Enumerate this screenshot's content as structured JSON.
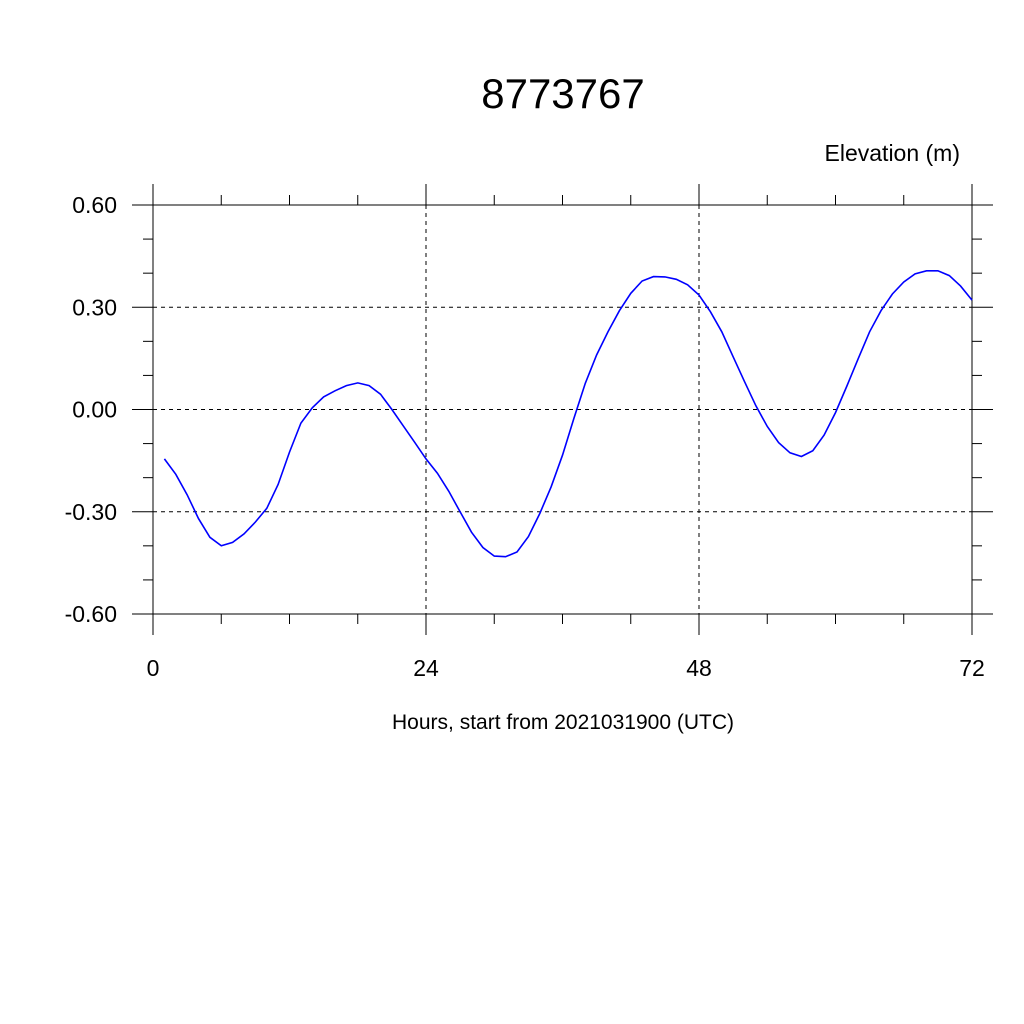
{
  "chart_data": {
    "type": "line",
    "title": "8773767",
    "ylabel": "Elevation (m)",
    "xlabel": "Hours, start from 2021031900 (UTC)",
    "xlim": [
      0,
      72
    ],
    "ylim": [
      -0.6,
      0.6
    ],
    "xticks": [
      0,
      24,
      48,
      72
    ],
    "xtick_labels": [
      "0",
      "24",
      "48",
      "72"
    ],
    "x_minor_step": 6,
    "yticks": [
      0.6,
      0.3,
      0.0,
      -0.3,
      -0.6
    ],
    "ytick_labels": [
      "0.60",
      "0.30",
      "0.00",
      "-0.30",
      "-0.60"
    ],
    "y_minor_step": 0.1,
    "grid": true,
    "line_color": "#0000ff",
    "x": [
      1,
      2,
      3,
      4,
      5,
      6,
      7,
      8,
      9,
      10,
      11,
      12,
      13,
      14,
      15,
      16,
      17,
      18,
      19,
      20,
      21,
      22,
      23,
      24,
      25,
      26,
      27,
      28,
      29,
      30,
      31,
      32,
      33,
      34,
      35,
      36,
      37,
      38,
      39,
      40,
      41,
      42,
      43,
      44,
      45,
      46,
      47,
      48,
      49,
      50,
      51,
      52,
      53,
      54,
      55,
      56,
      57,
      58,
      59,
      60,
      61,
      62,
      63,
      64,
      65,
      66,
      67,
      68,
      69,
      70,
      71,
      72
    ],
    "y": [
      -0.145,
      -0.19,
      -0.25,
      -0.32,
      -0.375,
      -0.4,
      -0.39,
      -0.365,
      -0.33,
      -0.29,
      -0.22,
      -0.125,
      -0.04,
      0.005,
      0.037,
      0.055,
      0.07,
      0.078,
      0.07,
      0.045,
      0.0,
      -0.048,
      -0.096,
      -0.145,
      -0.187,
      -0.24,
      -0.3,
      -0.36,
      -0.405,
      -0.43,
      -0.432,
      -0.418,
      -0.373,
      -0.305,
      -0.227,
      -0.134,
      -0.026,
      0.077,
      0.16,
      0.228,
      0.29,
      0.341,
      0.377,
      0.39,
      0.389,
      0.382,
      0.366,
      0.336,
      0.287,
      0.228,
      0.155,
      0.082,
      0.011,
      -0.05,
      -0.097,
      -0.127,
      -0.138,
      -0.121,
      -0.075,
      -0.009,
      0.069,
      0.15,
      0.228,
      0.29,
      0.339,
      0.374,
      0.398,
      0.407,
      0.407,
      0.393,
      0.362,
      0.321
    ]
  }
}
